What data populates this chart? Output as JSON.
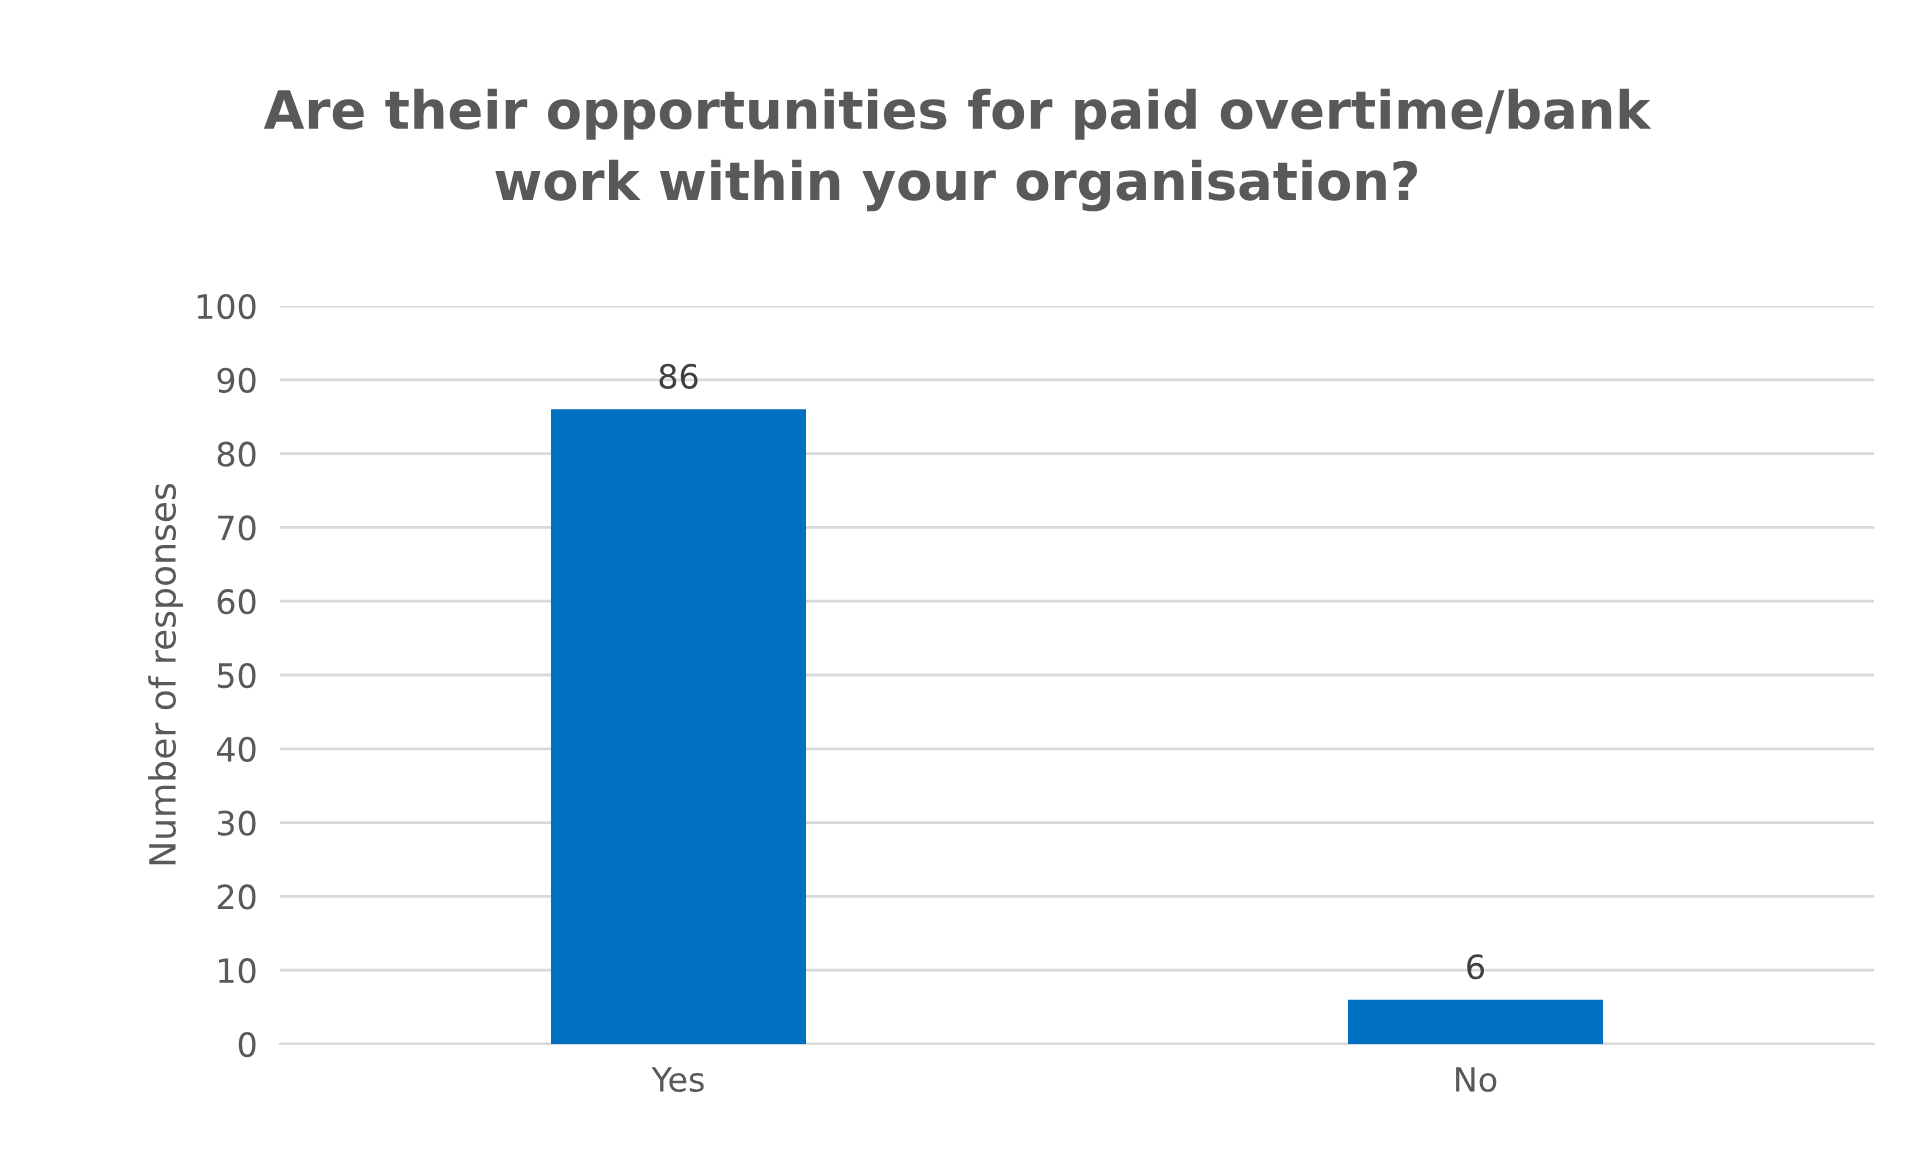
{
  "chart_data": {
    "type": "bar",
    "title": "Are their opportunities for paid overtime/bank\nwork within your organisation?",
    "ylabel": "Number of responses",
    "categories": [
      "Yes",
      "No"
    ],
    "values": [
      86,
      6
    ],
    "color": "#0070c0",
    "ylim": [
      0,
      100
    ],
    "yticks": [
      0,
      10,
      20,
      30,
      40,
      50,
      60,
      70,
      80,
      90,
      100
    ],
    "grid": "y",
    "data_labels": true
  }
}
